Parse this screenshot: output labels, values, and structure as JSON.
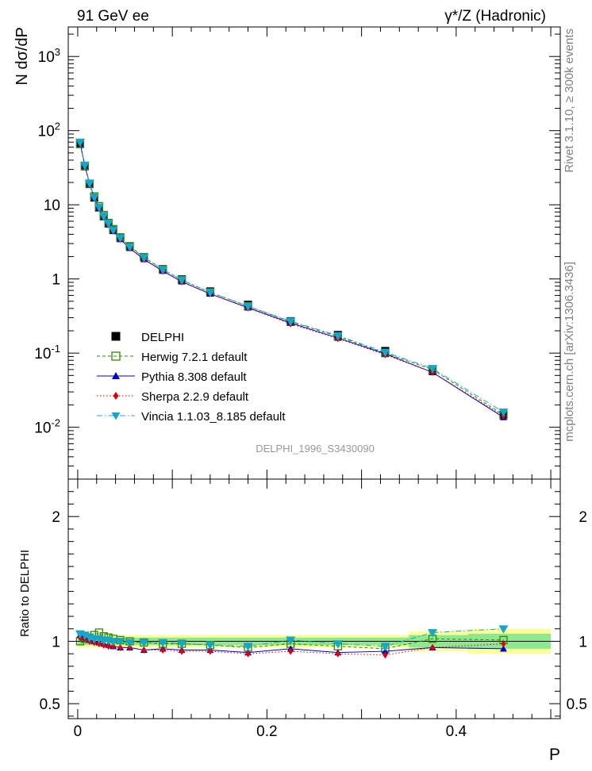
{
  "header": {
    "left": "91 GeV ee",
    "right": "γ*/Z (Hadronic)"
  },
  "side_labels": {
    "rivet": "Rivet 3.1.10, ≥ 300k events",
    "mcplots": "mcplots.cern.ch [arXiv:1306.3436]"
  },
  "analysis_id": "DELPHI_1996_S3430090",
  "colors": {
    "data": "#000000",
    "herwig": "#2e8b00",
    "pythia": "#0000cc",
    "sherpa": "#e00000",
    "vincia": "#17a5c8",
    "band_inner": "#8ee88e",
    "band_outer": "#ffff99"
  },
  "chart_data": [
    {
      "type": "scatter",
      "ylabel": "N dσ/dP",
      "yscale": "log",
      "ylim": [
        0.002,
        2500
      ],
      "xlim": [
        -0.01,
        0.51
      ],
      "y_tick_labels": [
        "10^-2",
        "10^-1",
        "1",
        "10",
        "10^2",
        "10^3"
      ],
      "x": [
        0.0025,
        0.0075,
        0.0125,
        0.0175,
        0.0225,
        0.0275,
        0.0325,
        0.0375,
        0.045,
        0.055,
        0.07,
        0.09,
        0.11,
        0.14,
        0.18,
        0.225,
        0.275,
        0.325,
        0.375,
        0.45
      ],
      "series": [
        {
          "name": "DELPHI",
          "key": "data",
          "marker": "square-filled",
          "values": [
            66,
            33,
            19,
            12.5,
            9.2,
            7.0,
            5.6,
            4.6,
            3.6,
            2.75,
            1.98,
            1.36,
            0.99,
            0.68,
            0.45,
            0.27,
            0.176,
            0.107,
            0.058,
            0.0145
          ]
        },
        {
          "name": "Herwig 7.2.1 default",
          "key": "herwig",
          "marker": "square-open",
          "line": "dashed",
          "values": [
            66,
            33.5,
            19.3,
            13.0,
            9.6,
            7.3,
            5.7,
            4.7,
            3.65,
            2.77,
            1.97,
            1.34,
            0.97,
            0.66,
            0.43,
            0.265,
            0.168,
            0.1,
            0.06,
            0.0147
          ]
        },
        {
          "name": "Pythia 8.308 default",
          "key": "pythia",
          "marker": "triangle-up",
          "line": "solid",
          "values": [
            69,
            34.0,
            19.3,
            12.5,
            9.1,
            6.8,
            5.4,
            4.4,
            3.42,
            2.6,
            1.84,
            1.28,
            0.92,
            0.63,
            0.41,
            0.255,
            0.16,
            0.098,
            0.055,
            0.0136
          ]
        },
        {
          "name": "Sherpa 2.2.9 default",
          "key": "sherpa",
          "marker": "diamond",
          "line": "dotted",
          "values": [
            68,
            33.5,
            19.0,
            12.3,
            9.0,
            6.8,
            5.4,
            4.4,
            3.42,
            2.6,
            1.83,
            1.27,
            0.91,
            0.63,
            0.405,
            0.248,
            0.157,
            0.095,
            0.055,
            0.0142
          ]
        },
        {
          "name": "Vincia 1.1.03_8.185 default",
          "key": "vincia",
          "marker": "triangle-down",
          "line": "dashdot",
          "values": [
            70,
            34.3,
            19.6,
            12.7,
            9.35,
            7.05,
            5.65,
            4.6,
            3.6,
            2.72,
            1.95,
            1.34,
            0.97,
            0.66,
            0.43,
            0.27,
            0.172,
            0.103,
            0.062,
            0.016
          ]
        }
      ]
    },
    {
      "type": "scatter",
      "xlabel": "P",
      "ylabel": "Ratio to DELPHI",
      "ylim": [
        0.38,
        2.3
      ],
      "xlim": [
        -0.01,
        0.51
      ],
      "x_tick_labels": [
        "0",
        "0.2",
        "0.4"
      ],
      "y_tick_labels": [
        "0.5",
        "1",
        "2"
      ],
      "x": [
        0.0025,
        0.0075,
        0.0125,
        0.0175,
        0.0225,
        0.0275,
        0.0325,
        0.0375,
        0.045,
        0.055,
        0.07,
        0.09,
        0.11,
        0.14,
        0.18,
        0.225,
        0.275,
        0.325,
        0.375,
        0.45
      ],
      "band": {
        "inner": [
          0.03,
          0.03,
          0.03,
          0.03,
          0.03,
          0.03,
          0.03,
          0.03,
          0.03,
          0.03,
          0.03,
          0.03,
          0.03,
          0.03,
          0.03,
          0.03,
          0.03,
          0.03,
          0.05,
          0.06
        ],
        "outer": [
          0.05,
          0.05,
          0.05,
          0.05,
          0.05,
          0.05,
          0.05,
          0.05,
          0.05,
          0.05,
          0.05,
          0.05,
          0.05,
          0.05,
          0.05,
          0.05,
          0.05,
          0.05,
          0.08,
          0.1
        ]
      },
      "series": [
        {
          "name": "Herwig 7.2.1 default",
          "key": "herwig",
          "marker": "square-open",
          "line": "dashed",
          "values": [
            1.0,
            1.02,
            1.03,
            1.05,
            1.07,
            1.04,
            1.03,
            1.02,
            1.01,
            1.0,
            0.99,
            0.98,
            0.98,
            0.97,
            0.95,
            0.98,
            0.96,
            0.94,
            1.02,
            1.01
          ]
        },
        {
          "name": "Pythia 8.308 default",
          "key": "pythia",
          "marker": "triangle-up",
          "line": "solid",
          "values": [
            1.05,
            1.03,
            1.01,
            1.0,
            0.99,
            0.98,
            0.97,
            0.96,
            0.95,
            0.95,
            0.93,
            0.94,
            0.93,
            0.93,
            0.91,
            0.94,
            0.91,
            0.92,
            0.95,
            0.94
          ]
        },
        {
          "name": "Sherpa 2.2.9 default",
          "key": "sherpa",
          "marker": "diamond",
          "line": "dotted",
          "values": [
            1.03,
            1.02,
            1.0,
            0.99,
            0.98,
            0.97,
            0.96,
            0.96,
            0.95,
            0.95,
            0.93,
            0.93,
            0.92,
            0.92,
            0.9,
            0.92,
            0.9,
            0.89,
            0.95,
            0.98
          ]
        },
        {
          "name": "Vincia 1.1.03_8.185 default",
          "key": "vincia",
          "marker": "triangle-down",
          "line": "dashdot",
          "values": [
            1.06,
            1.05,
            1.03,
            1.02,
            1.02,
            1.01,
            1.01,
            1.0,
            1.0,
            0.99,
            0.99,
            0.99,
            0.98,
            0.97,
            0.96,
            1.01,
            0.98,
            0.96,
            1.07,
            1.1
          ]
        }
      ]
    }
  ]
}
